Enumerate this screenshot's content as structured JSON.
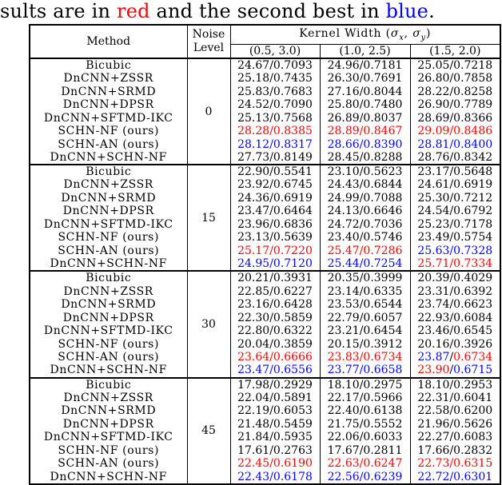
{
  "caption": {
    "part1": "sults are in ",
    "best_word": "red",
    "part2": " and the second best in ",
    "second_word": "blue",
    "part3": "."
  },
  "colors": {
    "normal": "#000000",
    "best": "#ff0000",
    "second_best": "#0000ff"
  },
  "table": {
    "header": {
      "method": "Method",
      "noise_line1": "Noise",
      "noise_line2": "Level",
      "kernel": {
        "prefix": "Kernel Width (",
        "sigma1": "σ",
        "sub1": "x",
        "sep": ", ",
        "sigma2": "σ",
        "sub2": "y",
        "suffix": ")"
      },
      "kernel_cols": [
        "(0.5, 3.0)",
        "(1.0, 2.5)",
        "(1.5, 2.0)"
      ]
    },
    "blocks": [
      {
        "noise_level": "0",
        "rows": [
          {
            "method": "Bicubic",
            "cells": [
              [
                "24.67",
                "0.7093",
                "k",
                "k"
              ],
              [
                "24.96",
                "0.7181",
                "k",
                "k"
              ],
              [
                "25.05",
                "0.7218",
                "k",
                "k"
              ]
            ]
          },
          {
            "method": "DnCNN+ZSSR",
            "cells": [
              [
                "25.18",
                "0.7435",
                "k",
                "k"
              ],
              [
                "26.30",
                "0.7691",
                "k",
                "k"
              ],
              [
                "26.80",
                "0.7858",
                "k",
                "k"
              ]
            ]
          },
          {
            "method": "DnCNN+SRMD",
            "cells": [
              [
                "25.83",
                "0.7683",
                "k",
                "k"
              ],
              [
                "27.16",
                "0.8044",
                "k",
                "k"
              ],
              [
                "28.22",
                "0.8258",
                "k",
                "k"
              ]
            ]
          },
          {
            "method": "DnCNN+DPSR",
            "cells": [
              [
                "24.52",
                "0.7090",
                "k",
                "k"
              ],
              [
                "25.80",
                "0.7480",
                "k",
                "k"
              ],
              [
                "26.90",
                "0.7789",
                "k",
                "k"
              ]
            ]
          },
          {
            "method": "DnCNN+SFTMD-IKC",
            "cells": [
              [
                "25.13",
                "0.7568",
                "k",
                "k"
              ],
              [
                "26.89",
                "0.8037",
                "k",
                "k"
              ],
              [
                "28.69",
                "0.8366",
                "k",
                "k"
              ]
            ]
          },
          {
            "method": "SCHN-NF (ours)",
            "cells": [
              [
                "28.28",
                "0.8385",
                "r",
                "r"
              ],
              [
                "28.89",
                "0.8467",
                "r",
                "r"
              ],
              [
                "29.09",
                "0.8486",
                "r",
                "r"
              ]
            ]
          },
          {
            "method": "SCHN-AN (ours)",
            "cells": [
              [
                "28.12",
                "0.8317",
                "b",
                "b"
              ],
              [
                "28.66",
                "0.8390",
                "b",
                "b"
              ],
              [
                "28.81",
                "0.8400",
                "b",
                "b"
              ]
            ]
          },
          {
            "method": "DnCNN+SCHN-NF",
            "cells": [
              [
                "27.73",
                "0.8149",
                "k",
                "k"
              ],
              [
                "28.45",
                "0.8288",
                "k",
                "k"
              ],
              [
                "28.76",
                "0.8342",
                "k",
                "k"
              ]
            ]
          }
        ]
      },
      {
        "noise_level": "15",
        "rows": [
          {
            "method": "Bicubic",
            "cells": [
              [
                "22.90",
                "0.5541",
                "k",
                "k"
              ],
              [
                "23.10",
                "0.5623",
                "k",
                "k"
              ],
              [
                "23.17",
                "0.5648",
                "k",
                "k"
              ]
            ]
          },
          {
            "method": "DnCNN+ZSSR",
            "cells": [
              [
                "23.92",
                "0.6745",
                "k",
                "k"
              ],
              [
                "24.43",
                "0.6844",
                "k",
                "k"
              ],
              [
                "24.61",
                "0.6919",
                "k",
                "k"
              ]
            ]
          },
          {
            "method": "DnCNN+SRMD",
            "cells": [
              [
                "24.36",
                "0.6919",
                "k",
                "k"
              ],
              [
                "24.99",
                "0.7088",
                "k",
                "k"
              ],
              [
                "25.30",
                "0.7212",
                "k",
                "k"
              ]
            ]
          },
          {
            "method": "DnCNN+DPSR",
            "cells": [
              [
                "23.47",
                "0.6464",
                "k",
                "k"
              ],
              [
                "24.13",
                "0.6646",
                "k",
                "k"
              ],
              [
                "24.54",
                "0.6792",
                "k",
                "k"
              ]
            ]
          },
          {
            "method": "DnCNN+SFTMD-IKC",
            "cells": [
              [
                "23.96",
                "0.6836",
                "k",
                "k"
              ],
              [
                "24.72",
                "0.7036",
                "k",
                "k"
              ],
              [
                "25.23",
                "0.7178",
                "k",
                "k"
              ]
            ]
          },
          {
            "method": "SCHN-NF (ours)",
            "cells": [
              [
                "23.13",
                "0.5639",
                "k",
                "k"
              ],
              [
                "23.40",
                "0.5746",
                "k",
                "k"
              ],
              [
                "23.49",
                "0.5754",
                "k",
                "k"
              ]
            ]
          },
          {
            "method": "SCHN-AN (ours)",
            "cells": [
              [
                "25.17",
                "0.7220",
                "r",
                "r"
              ],
              [
                "25.47",
                "0.7286",
                "r",
                "r"
              ],
              [
                "25.63",
                "0.7328",
                "b",
                "b"
              ]
            ]
          },
          {
            "method": "DnCNN+SCHN-NF",
            "cells": [
              [
                "24.95",
                "0.7120",
                "b",
                "b"
              ],
              [
                "25.44",
                "0.7254",
                "b",
                "b"
              ],
              [
                "25.71",
                "0.7334",
                "r",
                "r"
              ]
            ]
          }
        ]
      },
      {
        "noise_level": "30",
        "rows": [
          {
            "method": "Bicubic",
            "cells": [
              [
                "20.21",
                "0.3931",
                "k",
                "k"
              ],
              [
                "20.35",
                "0.3999",
                "k",
                "k"
              ],
              [
                "20.39",
                "0.4029",
                "k",
                "k"
              ]
            ]
          },
          {
            "method": "DnCNN+ZSSR",
            "cells": [
              [
                "22.85",
                "0.6227",
                "k",
                "k"
              ],
              [
                "23.14",
                "0.6335",
                "k",
                "k"
              ],
              [
                "23.31",
                "0.6392",
                "k",
                "k"
              ]
            ]
          },
          {
            "method": "DnCNN+SRMD",
            "cells": [
              [
                "23.16",
                "0.6428",
                "k",
                "k"
              ],
              [
                "23.53",
                "0.6544",
                "k",
                "k"
              ],
              [
                "23.74",
                "0.6623",
                "k",
                "k"
              ]
            ]
          },
          {
            "method": "DnCNN+DPSR",
            "cells": [
              [
                "22.30",
                "0.5859",
                "k",
                "k"
              ],
              [
                "22.79",
                "0.6057",
                "k",
                "k"
              ],
              [
                "22.93",
                "0.6084",
                "k",
                "k"
              ]
            ]
          },
          {
            "method": "DnCNN+SFTMD-IKC",
            "cells": [
              [
                "22.80",
                "0.6322",
                "k",
                "k"
              ],
              [
                "23.21",
                "0.6454",
                "k",
                "k"
              ],
              [
                "23.46",
                "0.6545",
                "k",
                "k"
              ]
            ]
          },
          {
            "method": "SCHN-NF (ours)",
            "cells": [
              [
                "20.04",
                "0.3859",
                "k",
                "k"
              ],
              [
                "20.15",
                "0.3912",
                "k",
                "k"
              ],
              [
                "20.16",
                "0.3926",
                "k",
                "k"
              ]
            ]
          },
          {
            "method": "SCHN-AN (ours)",
            "cells": [
              [
                "23.64",
                "0.6666",
                "r",
                "r"
              ],
              [
                "23.83",
                "0.6734",
                "r",
                "r"
              ],
              [
                "23.87",
                "0.6734",
                "b",
                "r"
              ]
            ]
          },
          {
            "method": "DnCNN+SCHN-NF",
            "cells": [
              [
                "23.47",
                "0.6556",
                "b",
                "b"
              ],
              [
                "23.77",
                "0.6658",
                "b",
                "b"
              ],
              [
                "23.90",
                "0.6715",
                "r",
                "b"
              ]
            ]
          }
        ]
      },
      {
        "noise_level": "45",
        "rows": [
          {
            "method": "Bicubic",
            "cells": [
              [
                "17.98",
                "0.2929",
                "k",
                "k"
              ],
              [
                "18.10",
                "0.2975",
                "k",
                "k"
              ],
              [
                "18.10",
                "0.2953",
                "k",
                "k"
              ]
            ]
          },
          {
            "method": "DnCNN+ZSSR",
            "cells": [
              [
                "22.04",
                "0.5891",
                "k",
                "k"
              ],
              [
                "22.17",
                "0.5966",
                "k",
                "k"
              ],
              [
                "22.31",
                "0.6041",
                "k",
                "k"
              ]
            ]
          },
          {
            "method": "DnCNN+SRMD",
            "cells": [
              [
                "22.19",
                "0.6053",
                "k",
                "k"
              ],
              [
                "22.40",
                "0.6138",
                "k",
                "k"
              ],
              [
                "22.58",
                "0.6200",
                "k",
                "k"
              ]
            ]
          },
          {
            "method": "DnCNN+DPSR",
            "cells": [
              [
                "21.48",
                "0.5459",
                "k",
                "k"
              ],
              [
                "21.75",
                "0.5552",
                "k",
                "k"
              ],
              [
                "21.96",
                "0.5626",
                "k",
                "k"
              ]
            ]
          },
          {
            "method": "DnCNN+SFTMD-IKC",
            "cells": [
              [
                "21.84",
                "0.5935",
                "k",
                "k"
              ],
              [
                "22.06",
                "0.6033",
                "k",
                "k"
              ],
              [
                "22.27",
                "0.6083",
                "k",
                "k"
              ]
            ]
          },
          {
            "method": "SCHN-NF (ours)",
            "cells": [
              [
                "17.61",
                "0.2763",
                "k",
                "k"
              ],
              [
                "17.67",
                "0.2811",
                "k",
                "k"
              ],
              [
                "17.66",
                "0.2832",
                "k",
                "k"
              ]
            ]
          },
          {
            "method": "SCHN-AN (ours)",
            "cells": [
              [
                "22.45",
                "0.6190",
                "r",
                "r"
              ],
              [
                "22.63",
                "0.6247",
                "r",
                "r"
              ],
              [
                "22.73",
                "0.6315",
                "r",
                "r"
              ]
            ]
          },
          {
            "method": "DnCNN+SCHN-NF",
            "cells": [
              [
                "22.43",
                "0.6178",
                "b",
                "b"
              ],
              [
                "22.56",
                "0.6239",
                "b",
                "b"
              ],
              [
                "22.72",
                "0.6301",
                "b",
                "b"
              ]
            ]
          }
        ]
      }
    ]
  }
}
